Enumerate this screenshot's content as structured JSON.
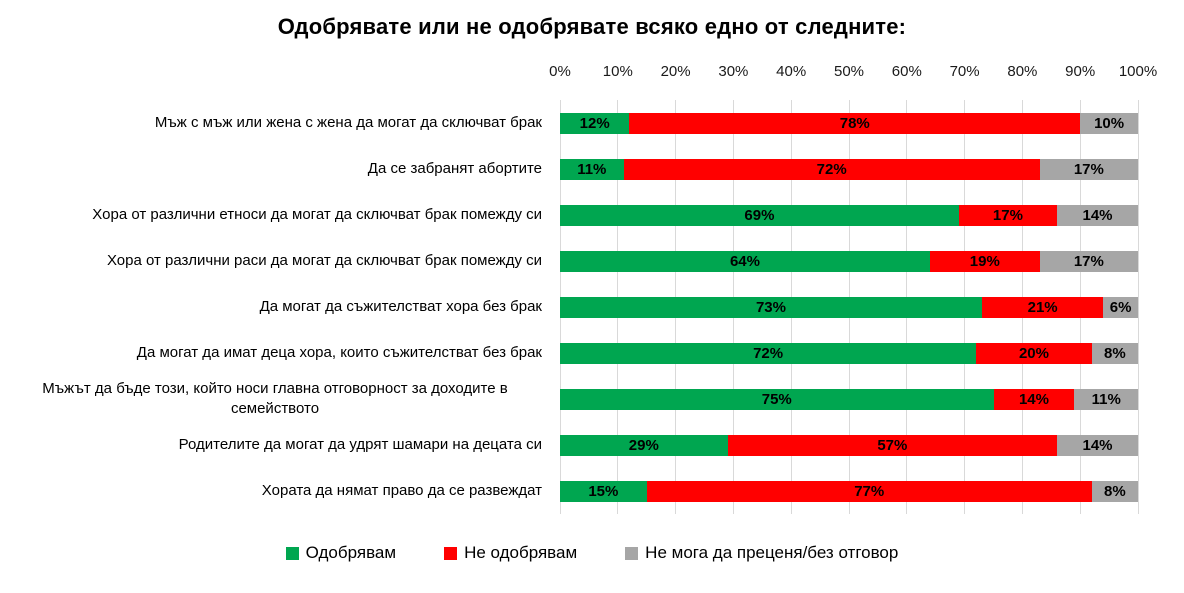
{
  "title": "Одобрявате или не одобрявате всяко едно от следните:",
  "chart_data": {
    "type": "bar",
    "orientation": "horizontal",
    "stacked": true,
    "title": "Одобрявате или не одобрявате всяко едно от следните:",
    "xlim": [
      0,
      100
    ],
    "axis_ticks": [
      "0%",
      "10%",
      "20%",
      "30%",
      "40%",
      "50%",
      "60%",
      "70%",
      "80%",
      "90%",
      "100%"
    ],
    "grid": true,
    "gridline_color": "#d9d9d9",
    "legend_position": "bottom",
    "value_suffix": "%",
    "categories": [
      "Мъж с мъж или жена с жена да могат да сключват брак",
      "Да се забранят абортите",
      "Хора от различни етноси да могат да сключват брак помежду си",
      "Хора от различни раси да могат да сключват брак помежду си",
      "Да могат да съжителстват хора без брак",
      "Да могат да имат деца хора, които съжителстват без брак",
      "Мъжът да бъде този, който носи главна отговорност за доходите в семейството",
      "Родителите да могат да удрят шамари на децата си",
      "Хората да нямат право да се развеждат"
    ],
    "series": [
      {
        "key": "approve",
        "name": "Одобрявам",
        "color": "#00a650",
        "values": [
          12,
          11,
          69,
          64,
          73,
          72,
          75,
          29,
          15
        ],
        "value_labels": [
          "12%",
          "11%",
          "69%",
          "64%",
          "73%",
          "72%",
          "75%",
          "29%",
          "15%"
        ]
      },
      {
        "key": "disapprove",
        "name": "Не одобрявам",
        "color": "#ff0000",
        "values": [
          78,
          72,
          17,
          19,
          21,
          20,
          14,
          57,
          77
        ],
        "value_labels": [
          "78%",
          "72%",
          "17%",
          "19%",
          "21%",
          "20%",
          "14%",
          "57%",
          "77%"
        ]
      },
      {
        "key": "no-answer",
        "name": "Не мога да преценя/без отговор",
        "color": "#a6a6a6",
        "values": [
          10,
          17,
          14,
          17,
          6,
          8,
          11,
          14,
          8
        ],
        "value_labels": [
          "10%",
          "17%",
          "14%",
          "17%",
          "6%",
          "8%",
          "11%",
          "14%",
          "8%"
        ]
      }
    ]
  }
}
